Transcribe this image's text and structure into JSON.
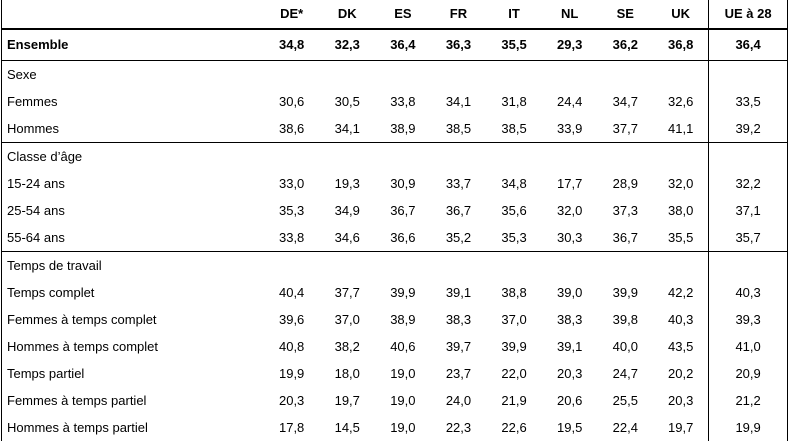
{
  "header": {
    "countries": [
      "DE*",
      "DK",
      "ES",
      "FR",
      "IT",
      "NL",
      "SE",
      "UK"
    ],
    "eu": "UE à 28"
  },
  "total": {
    "label": "Ensemble",
    "values": [
      "34,8",
      "32,3",
      "36,4",
      "36,3",
      "35,5",
      "29,3",
      "36,2",
      "36,8"
    ],
    "eu": "36,4"
  },
  "sections": [
    {
      "title": "Sexe",
      "rows": [
        {
          "label": "Femmes",
          "values": [
            "30,6",
            "30,5",
            "33,8",
            "34,1",
            "31,8",
            "24,4",
            "34,7",
            "32,6"
          ],
          "eu": "33,5"
        },
        {
          "label": "Hommes",
          "values": [
            "38,6",
            "34,1",
            "38,9",
            "38,5",
            "38,5",
            "33,9",
            "37,7",
            "41,1"
          ],
          "eu": "39,2"
        }
      ]
    },
    {
      "title": "Classe d’âge",
      "rows": [
        {
          "label": "15-24 ans",
          "values": [
            "33,0",
            "19,3",
            "30,9",
            "33,7",
            "34,8",
            "17,7",
            "28,9",
            "32,0"
          ],
          "eu": "32,2"
        },
        {
          "label": "25-54 ans",
          "values": [
            "35,3",
            "34,9",
            "36,7",
            "36,7",
            "35,6",
            "32,0",
            "37,3",
            "38,0"
          ],
          "eu": "37,1"
        },
        {
          "label": "55-64 ans",
          "values": [
            "33,8",
            "34,6",
            "36,6",
            "35,2",
            "35,3",
            "30,3",
            "36,7",
            "35,5"
          ],
          "eu": "35,7"
        }
      ]
    },
    {
      "title": "Temps de travail",
      "rows": [
        {
          "label": "Temps complet",
          "values": [
            "40,4",
            "37,7",
            "39,9",
            "39,1",
            "38,8",
            "39,0",
            "39,9",
            "42,2"
          ],
          "eu": "40,3"
        },
        {
          "label": "Femmes à temps complet",
          "values": [
            "39,6",
            "37,0",
            "38,9",
            "38,3",
            "37,0",
            "38,3",
            "39,8",
            "40,3"
          ],
          "eu": "39,3"
        },
        {
          "label": "Hommes à temps complet",
          "values": [
            "40,8",
            "38,2",
            "40,6",
            "39,7",
            "39,9",
            "39,1",
            "40,0",
            "43,5"
          ],
          "eu": "41,0"
        },
        {
          "label": "Temps partiel",
          "values": [
            "19,9",
            "18,0",
            "19,0",
            "23,7",
            "22,0",
            "20,3",
            "24,7",
            "20,2"
          ],
          "eu": "20,9"
        },
        {
          "label": "Femmes à temps partiel",
          "values": [
            "20,3",
            "19,7",
            "19,0",
            "24,0",
            "21,9",
            "20,6",
            "25,5",
            "20,3"
          ],
          "eu": "21,2"
        },
        {
          "label": "Hommes à temps partiel",
          "values": [
            "17,8",
            "14,5",
            "19,0",
            "22,3",
            "22,6",
            "19,5",
            "22,4",
            "19,7"
          ],
          "eu": "19,9"
        }
      ]
    }
  ]
}
